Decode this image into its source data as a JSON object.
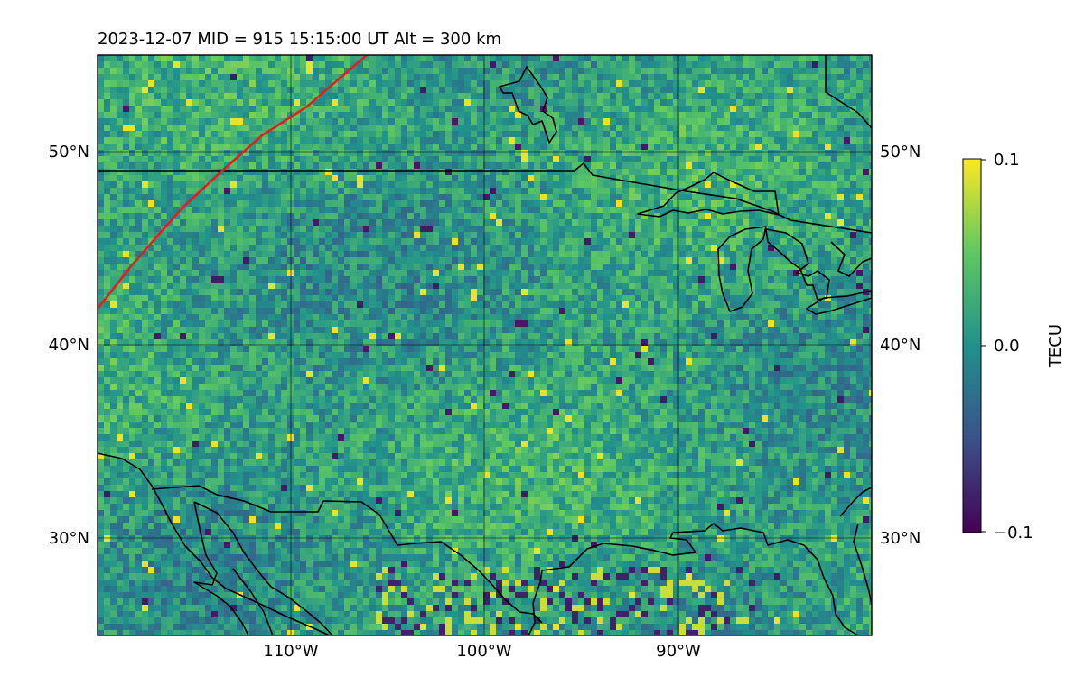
{
  "title": "2023-12-07  MID = 915    15:15:00  UT  Alt = 300 km",
  "map": {
    "lon_range": [
      -120,
      -80
    ],
    "lat_range": [
      25,
      55
    ],
    "lat_ticks": [
      {
        "value": 30,
        "label": "30°N"
      },
      {
        "value": 40,
        "label": "40°N"
      },
      {
        "value": 50,
        "label": "50°N"
      }
    ],
    "lon_ticks": [
      {
        "value": -110,
        "label": "110°W"
      },
      {
        "value": -100,
        "label": "100°W"
      },
      {
        "value": -90,
        "label": "90°W"
      }
    ],
    "terminator_color": "#e0201c",
    "coastline_color": "#000000"
  },
  "colorbar": {
    "label": "TECU",
    "min": -0.1,
    "max": 0.1,
    "ticks": [
      {
        "value": 0.1,
        "label": "0.1"
      },
      {
        "value": 0.0,
        "label": "0.0"
      },
      {
        "value": -0.1,
        "label": "−0.1"
      }
    ],
    "colormap": [
      "#440154",
      "#3b528b",
      "#21918c",
      "#5ec962",
      "#fde725"
    ]
  }
}
